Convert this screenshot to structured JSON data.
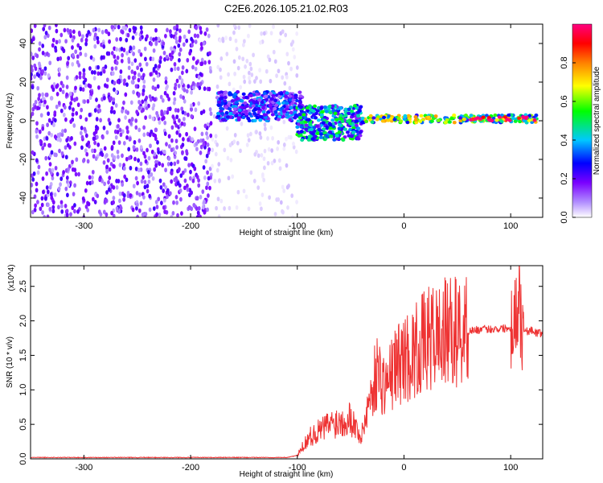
{
  "chart_data": [
    {
      "type": "heatmap",
      "title": "C2E6.2026.105.21.02.R03",
      "xlabel": "Height of straight line (km)",
      "ylabel": "Frequency (Hz)",
      "xlim": [
        -350,
        130
      ],
      "ylim": [
        -50,
        50
      ],
      "xticks": [
        -300,
        -200,
        -100,
        0,
        100
      ],
      "yticks": [
        -40,
        -20,
        0,
        20,
        40
      ],
      "colorbar": {
        "label": "Normalized spectral amplitude",
        "range": [
          0,
          1
        ],
        "ticks": [
          "0.0",
          "0.2",
          "0.4",
          "0.6",
          "0.8"
        ],
        "colors": [
          "#ffffff",
          "#b08cff",
          "#7a00ff",
          "#0000ff",
          "#00c8ff",
          "#00ff00",
          "#ffff00",
          "#ff8000",
          "#ff0000",
          "#ff0080"
        ]
      },
      "regions": [
        {
          "x_range": [
            -350,
            -180
          ],
          "freq_range": [
            -50,
            50
          ],
          "amplitude": 0.1
        },
        {
          "x_range": [
            -180,
            -100
          ],
          "freq_range": [
            -50,
            50
          ],
          "amplitude": 0.03
        },
        {
          "x_range": [
            -175,
            -95
          ],
          "freq_range": [
            0,
            15
          ],
          "amplitude": 0.25
        },
        {
          "x_range": [
            -100,
            -40
          ],
          "freq_range": [
            -10,
            8
          ],
          "amplitude": 0.35
        },
        {
          "x_range": [
            -40,
            125
          ],
          "freq_range": [
            -1,
            3
          ],
          "amplitude": 0.5
        },
        {
          "x_range": [
            60,
            125
          ],
          "freq_range": [
            0,
            2
          ],
          "amplitude": 0.9
        }
      ]
    },
    {
      "type": "line",
      "xlabel": "Height of straight line (km)",
      "ylabel": "SNR (10 * v/v)",
      "y_multiplier": "(x10^4)",
      "color": "#ee3333",
      "xlim": [
        -350,
        130
      ],
      "ylim": [
        0,
        2.8
      ],
      "xticks": [
        -300,
        -200,
        -100,
        0,
        100
      ],
      "yticks": [
        0.0,
        0.5,
        1.0,
        1.5,
        2.0,
        2.5
      ],
      "series": [
        {
          "x": [
            -350,
            -300,
            -250,
            -200,
            -150,
            -110,
            -100,
            -90,
            -80,
            -70,
            -60,
            -50,
            -45,
            -40,
            -35,
            -30,
            -25,
            -20,
            -15,
            -10,
            -5,
            0,
            10,
            20,
            30,
            40,
            50,
            60,
            70,
            80,
            90,
            100,
            105,
            108,
            110,
            115,
            120,
            125,
            130
          ],
          "y": [
            0.02,
            0.02,
            0.02,
            0.02,
            0.02,
            0.02,
            0.05,
            0.3,
            0.4,
            0.5,
            0.55,
            0.6,
            0.45,
            0.3,
            0.7,
            1.0,
            1.3,
            1.1,
            1.1,
            1.3,
            1.4,
            1.45,
            1.55,
            1.7,
            1.78,
            1.82,
            1.85,
            1.86,
            1.87,
            1.88,
            1.89,
            1.9,
            2.1,
            2.5,
            1.9,
            1.85,
            1.86,
            1.82,
            1.82
          ]
        }
      ]
    }
  ]
}
